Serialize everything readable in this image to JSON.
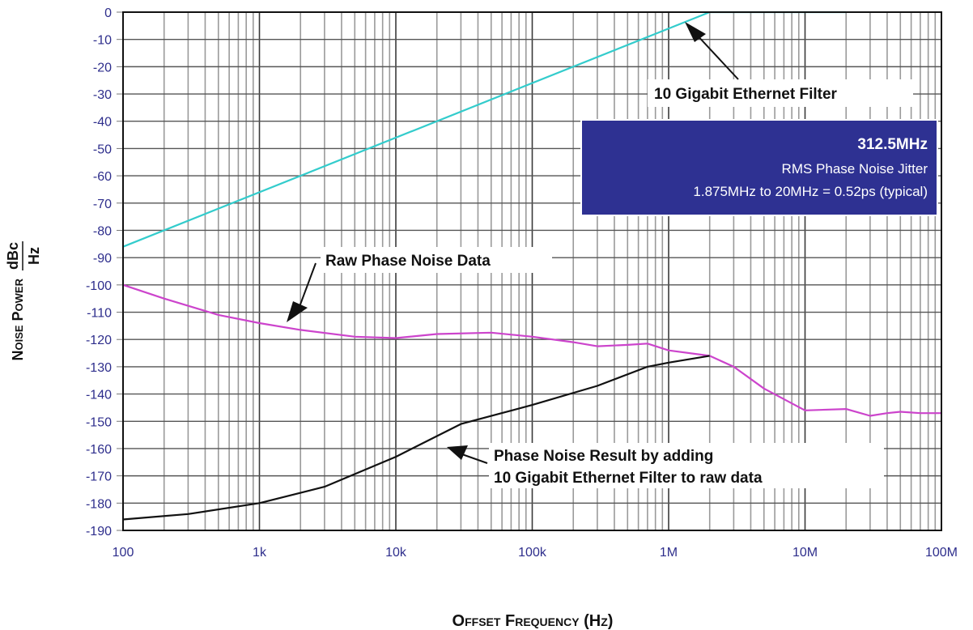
{
  "chart_data": {
    "type": "line",
    "xlabel": "Offset Frequency (Hz)",
    "ylabel_main": "Noise Power",
    "ylabel_unit_num": "dBc",
    "ylabel_unit_den": "Hz",
    "x_scale": "log",
    "xlim": [
      100,
      100000000
    ],
    "ylim": [
      -190,
      0
    ],
    "grid": true,
    "x_ticks": [
      {
        "value": 100,
        "label": "100"
      },
      {
        "value": 1000,
        "label": "1k"
      },
      {
        "value": 10000,
        "label": "10k"
      },
      {
        "value": 100000,
        "label": "100k"
      },
      {
        "value": 1000000,
        "label": "1M"
      },
      {
        "value": 10000000,
        "label": "10M"
      },
      {
        "value": 100000000,
        "label": "100M"
      }
    ],
    "y_ticks": [
      0,
      -10,
      -20,
      -30,
      -40,
      -50,
      -60,
      -70,
      -80,
      -90,
      -100,
      -110,
      -120,
      -130,
      -140,
      -150,
      -160,
      -170,
      -180,
      -190
    ],
    "series": [
      {
        "color": "#33cccc",
        "points": [
          [
            100,
            -86
          ],
          [
            2000000,
            0
          ],
          [
            20000000,
            0
          ]
        ]
      },
      {
        "color": "#cc44cc",
        "points": [
          [
            100,
            -100
          ],
          [
            200,
            -105
          ],
          [
            500,
            -111
          ],
          [
            1000,
            -114
          ],
          [
            2000,
            -116.5
          ],
          [
            5000,
            -119
          ],
          [
            10000,
            -119.5
          ],
          [
            20000,
            -118
          ],
          [
            50000,
            -117.5
          ],
          [
            100000,
            -119
          ],
          [
            200000,
            -121
          ],
          [
            300000,
            -122.5
          ],
          [
            500000,
            -122
          ],
          [
            700000,
            -121.5
          ],
          [
            1000000,
            -124
          ],
          [
            2000000,
            -126
          ],
          [
            3000000,
            -130
          ],
          [
            5000000,
            -138
          ],
          [
            10000000,
            -146
          ],
          [
            20000000,
            -145.5
          ],
          [
            30000000,
            -148
          ],
          [
            40000000,
            -147
          ],
          [
            50000000,
            -146.5
          ],
          [
            70000000,
            -147
          ],
          [
            100000000,
            -147
          ]
        ]
      },
      {
        "color": "#111111",
        "points": [
          [
            100,
            -186
          ],
          [
            300,
            -184
          ],
          [
            1000,
            -180
          ],
          [
            3000,
            -174
          ],
          [
            10000,
            -163
          ],
          [
            30000,
            -151
          ],
          [
            100000,
            -144
          ],
          [
            300000,
            -137
          ],
          [
            700000,
            -130
          ],
          [
            1000000,
            -128.5
          ],
          [
            2000000,
            -126
          ]
        ]
      }
    ],
    "annotations": [
      {
        "text": "10 Gigabit Ethernet Filter"
      },
      {
        "text": "Raw Phase Noise Data"
      },
      {
        "text": "Phase Noise Result by adding"
      },
      {
        "text": "10 Gigabit Ethernet Filter to raw data"
      }
    ],
    "info_box": {
      "title": "312.5MHz",
      "line1": "RMS Phase Noise Jitter",
      "line2": "1.875MHz to 20MHz = 0.52ps (typical)",
      "bg_color": "#2e3192"
    }
  }
}
